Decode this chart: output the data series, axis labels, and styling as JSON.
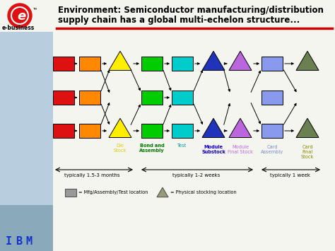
{
  "title_line1": "Environment: Semiconductor manufacturing/distribution",
  "title_line2": "supply chain has a global multi-echelon structure...",
  "title_fontsize": 8.5,
  "bg_color": "#f5f5f0",
  "sidebar_color": "#b8cede",
  "red_line_color": "#cc0000",
  "shapes": {
    "red_rect": "#dd1111",
    "orange_rect": "#ff8800",
    "yellow_tri": "#ffee00",
    "green_rect": "#00cc00",
    "cyan_rect": "#00cccc",
    "blue_tri": "#2233bb",
    "purple_tri": "#bb66dd",
    "lavender_rect": "#8899ee",
    "green_dark_tri": "#6b8050"
  },
  "label_colors": {
    "wafer_test": "#ff8800",
    "die_stock": "#ddcc00",
    "bond_assembly": "#007700",
    "test": "#009999",
    "module_substock": "#1100cc",
    "module_final": "#bb66dd",
    "card_assembly": "#7788cc",
    "card_final": "#888800"
  },
  "time_labels": [
    "typically 1.5-3 months",
    "typically 1-2 weeks",
    "typically 1 week"
  ],
  "legend_rect_label": "= Mfg/Assembly/Test location",
  "legend_tri_label": "= Physical stocking location"
}
